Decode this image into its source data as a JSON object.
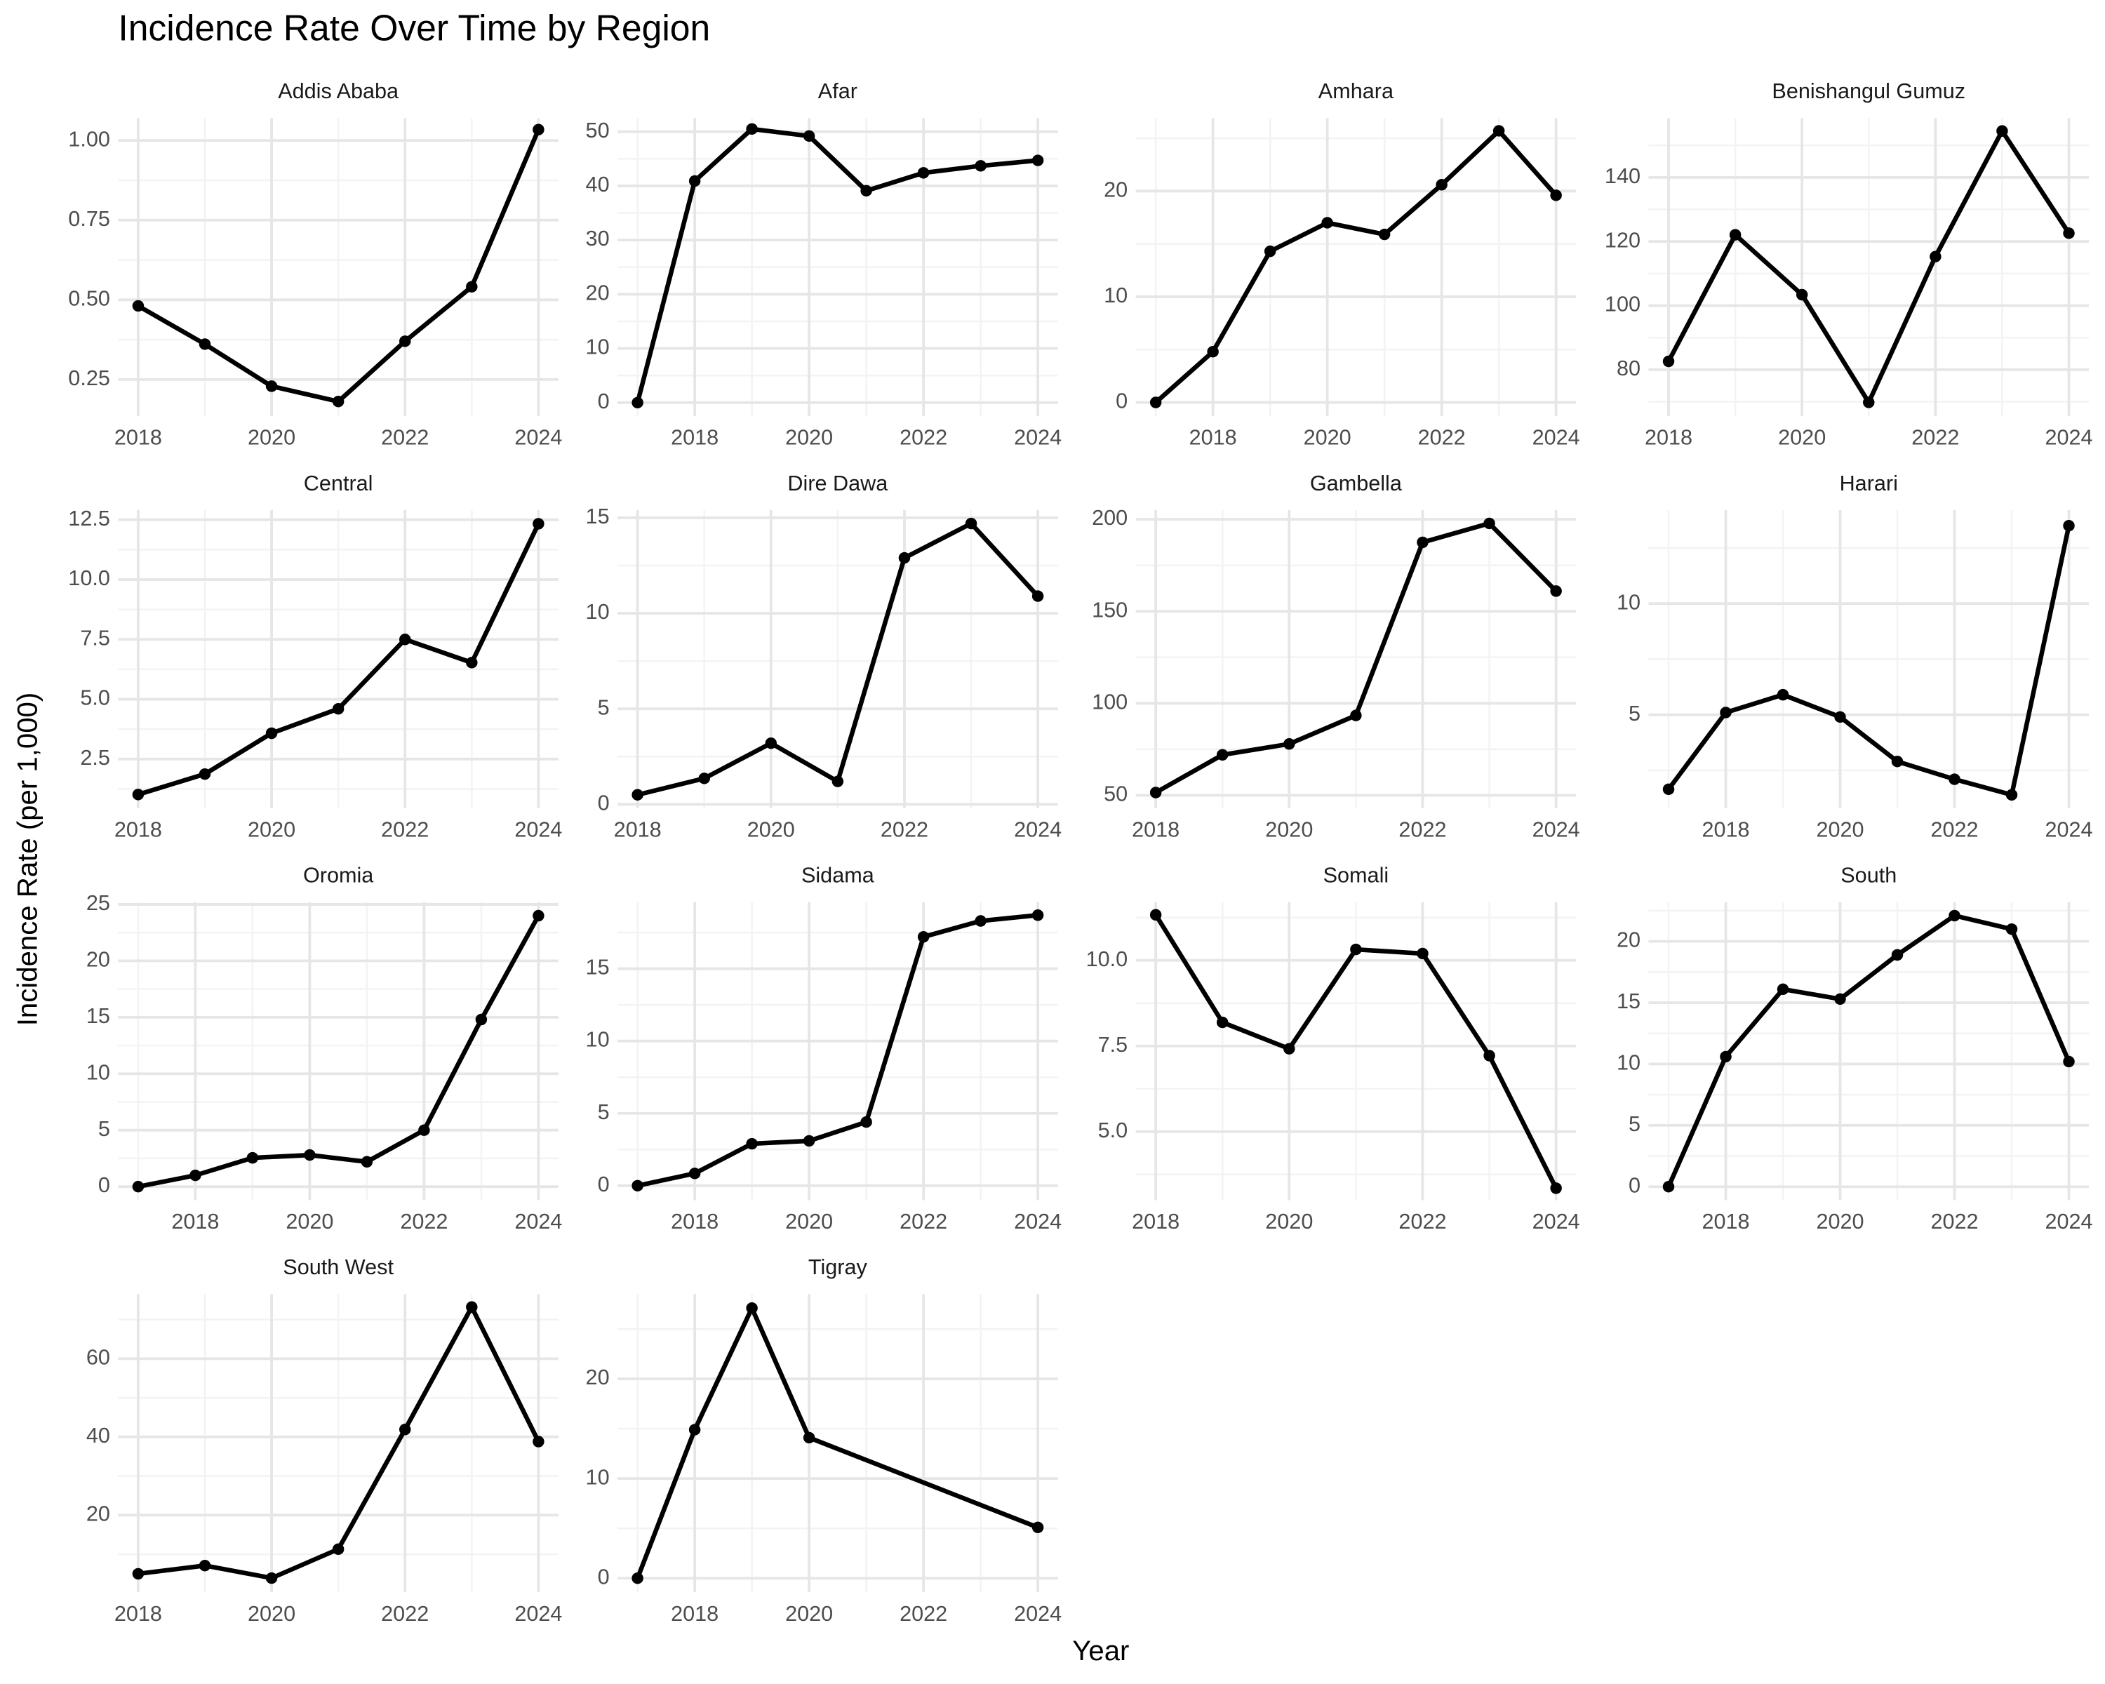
{
  "title": "Incidence Rate Over Time by Region",
  "xlabel": "Year",
  "ylabel": "Incidence Rate (per 1,000)",
  "chart_data": [
    {
      "type": "line",
      "title": "Addis Ababa",
      "x": [
        2018,
        2019,
        2020,
        2021,
        2022,
        2023,
        2024
      ],
      "values": [
        0.481,
        0.361,
        0.229,
        0.181,
        0.37,
        0.541,
        1.034
      ],
      "color": "#000000",
      "xlim": [
        2017.7,
        2024.3
      ],
      "ylim": [
        0.135,
        1.07
      ],
      "xticks": [
        2018,
        2020,
        2022,
        2024
      ],
      "yticks": [
        0.25,
        {
          "value": 0.5,
          "label": "0.50"
        },
        0.75,
        {
          "value": 1,
          "label": "1.00"
        }
      ],
      "grid": true
    },
    {
      "type": "line",
      "title": "Afar",
      "x": [
        2017,
        2018,
        2019,
        2020,
        2021,
        2022,
        2023,
        2024
      ],
      "values": [
        0,
        40.9,
        50.5,
        49.2,
        39.1,
        42.4,
        43.7,
        44.7
      ],
      "color": "#000000",
      "xlim": [
        2016.65,
        2024.35
      ],
      "ylim": [
        -2.5,
        52.5
      ],
      "xticks": [
        2018,
        2020,
        2022,
        2024
      ],
      "yticks": [
        0,
        10,
        20,
        30,
        40,
        50
      ],
      "grid": true
    },
    {
      "type": "line",
      "title": "Amhara",
      "x": [
        2017,
        2018,
        2019,
        2020,
        2021,
        2022,
        2023,
        2024
      ],
      "values": [
        0,
        4.8,
        14.3,
        17.0,
        15.9,
        20.6,
        25.7,
        19.6
      ],
      "color": "#000000",
      "xlim": [
        2016.65,
        2024.35
      ],
      "ylim": [
        -1.3,
        26.9
      ],
      "xticks": [
        2018,
        2020,
        2022,
        2024
      ],
      "yticks": [
        0,
        10,
        20
      ],
      "grid": true
    },
    {
      "type": "line",
      "title": "Benishangul Gumuz",
      "x": [
        2018,
        2019,
        2020,
        2021,
        2022,
        2023,
        2024
      ],
      "values": [
        82.6,
        122.1,
        103.4,
        69.8,
        115.3,
        154.5,
        122.6
      ],
      "color": "#000000",
      "xlim": [
        2017.7,
        2024.3
      ],
      "ylim": [
        65.5,
        158.5
      ],
      "xticks": [
        2018,
        2020,
        2022,
        2024
      ],
      "yticks": [
        80,
        100,
        120,
        140
      ],
      "grid": true
    },
    {
      "type": "line",
      "title": "Central",
      "x": [
        2018,
        2019,
        2020,
        2021,
        2022,
        2023,
        2024
      ],
      "values": [
        1.02,
        1.875,
        3.58,
        4.6,
        7.5,
        6.53,
        12.33
      ],
      "color": "#000000",
      "xlim": [
        2017.7,
        2024.3
      ],
      "ylim": [
        0.45,
        12.9
      ],
      "xticks": [
        2018,
        2020,
        2022,
        2024
      ],
      "yticks": [
        2.5,
        {
          "value": 5,
          "label": "5.0"
        },
        7.5,
        {
          "value": 10,
          "label": "10.0"
        },
        12.5
      ],
      "grid": true
    },
    {
      "type": "line",
      "title": "Dire Dawa",
      "x": [
        2018,
        2019,
        2020,
        2021,
        2022,
        2023,
        2024
      ],
      "values": [
        0.5,
        1.36,
        3.2,
        1.2,
        12.9,
        14.7,
        10.9
      ],
      "color": "#000000",
      "xlim": [
        2017.7,
        2024.3
      ],
      "ylim": [
        -0.2,
        15.4
      ],
      "xticks": [
        2018,
        2020,
        2022,
        2024
      ],
      "yticks": [
        0,
        5,
        10,
        15
      ],
      "grid": true
    },
    {
      "type": "line",
      "title": "Gambella",
      "x": [
        2018,
        2019,
        2020,
        2021,
        2022,
        2023,
        2024
      ],
      "values": [
        51.5,
        72,
        77.9,
        93.4,
        187.5,
        197.8,
        161
      ],
      "color": "#000000",
      "xlim": [
        2017.7,
        2024.3
      ],
      "ylim": [
        43,
        205
      ],
      "xticks": [
        2018,
        2020,
        2022,
        2024
      ],
      "yticks": [
        50,
        100,
        150,
        200
      ],
      "grid": true
    },
    {
      "type": "line",
      "title": "Harari",
      "x": [
        2017,
        2018,
        2019,
        2020,
        2021,
        2022,
        2023,
        2024
      ],
      "values": [
        1.65,
        5.1,
        5.9,
        4.9,
        2.9,
        2.1,
        1.4,
        13.5
      ],
      "color": "#000000",
      "xlim": [
        2016.65,
        2024.35
      ],
      "ylim": [
        0.8,
        14.2
      ],
      "xticks": [
        2018,
        2020,
        2022,
        2024
      ],
      "yticks": [
        5,
        10
      ],
      "grid": true
    },
    {
      "type": "line",
      "title": "Oromia",
      "x": [
        2017,
        2018,
        2019,
        2020,
        2021,
        2022,
        2023,
        2024
      ],
      "values": [
        0,
        1.0,
        2.55,
        2.8,
        2.2,
        5.0,
        14.8,
        24.0
      ],
      "color": "#000000",
      "xlim": [
        2016.65,
        2024.35
      ],
      "ylim": [
        -1.2,
        25.2
      ],
      "xticks": [
        2018,
        2020,
        2022,
        2024
      ],
      "yticks": [
        0,
        5,
        10,
        15,
        20,
        25
      ],
      "grid": true
    },
    {
      "type": "line",
      "title": "Sidama",
      "x": [
        2017,
        2018,
        2019,
        2020,
        2021,
        2022,
        2023,
        2024
      ],
      "values": [
        0,
        0.85,
        2.9,
        3.1,
        4.4,
        17.2,
        18.3,
        18.7
      ],
      "color": "#000000",
      "xlim": [
        2016.65,
        2024.35
      ],
      "ylim": [
        -1,
        19.6
      ],
      "xticks": [
        2018,
        2020,
        2022,
        2024
      ],
      "yticks": [
        0,
        5,
        10,
        15
      ],
      "grid": true
    },
    {
      "type": "line",
      "title": "Somali",
      "x": [
        2018,
        2019,
        2020,
        2021,
        2022,
        2023,
        2024
      ],
      "values": [
        11.33,
        8.19,
        7.42,
        10.32,
        10.2,
        7.22,
        3.35
      ],
      "color": "#000000",
      "xlim": [
        2017.7,
        2024.3
      ],
      "ylim": [
        3.0,
        11.7
      ],
      "xticks": [
        2018,
        2020,
        2022,
        2024
      ],
      "yticks": [
        {
          "value": 5,
          "label": "5.0"
        },
        7.5,
        {
          "value": 10,
          "label": "10.0"
        }
      ],
      "grid": true
    },
    {
      "type": "line",
      "title": "South",
      "x": [
        2017,
        2018,
        2019,
        2020,
        2021,
        2022,
        2023,
        2024
      ],
      "values": [
        0,
        10.6,
        16.1,
        15.3,
        18.9,
        22.1,
        21.0,
        10.2
      ],
      "color": "#000000",
      "xlim": [
        2016.65,
        2024.35
      ],
      "ylim": [
        -1.1,
        23.2
      ],
      "xticks": [
        2018,
        2020,
        2022,
        2024
      ],
      "yticks": [
        0,
        5,
        10,
        15,
        20
      ],
      "grid": true
    },
    {
      "type": "line",
      "title": "South West",
      "x": [
        2018,
        2019,
        2020,
        2021,
        2022,
        2023,
        2024
      ],
      "values": [
        5.0,
        7.1,
        3.9,
        11.3,
        41.9,
        73.2,
        38.8
      ],
      "color": "#000000",
      "xlim": [
        2017.7,
        2024.3
      ],
      "ylim": [
        0.3,
        76.5
      ],
      "xticks": [
        2018,
        2020,
        2022,
        2024
      ],
      "yticks": [
        20,
        40,
        60
      ],
      "grid": true
    },
    {
      "type": "line",
      "title": "Tigray",
      "x": [
        2017,
        2018,
        2019,
        2020,
        2024
      ],
      "values": [
        0,
        14.9,
        27.1,
        14.1,
        5.1
      ],
      "color": "#000000",
      "xlim": [
        2016.65,
        2024.35
      ],
      "ylim": [
        -1.4,
        28.5
      ],
      "xticks": [
        2018,
        2020,
        2022,
        2024
      ],
      "yticks": [
        0,
        10,
        20
      ],
      "grid": true
    }
  ]
}
